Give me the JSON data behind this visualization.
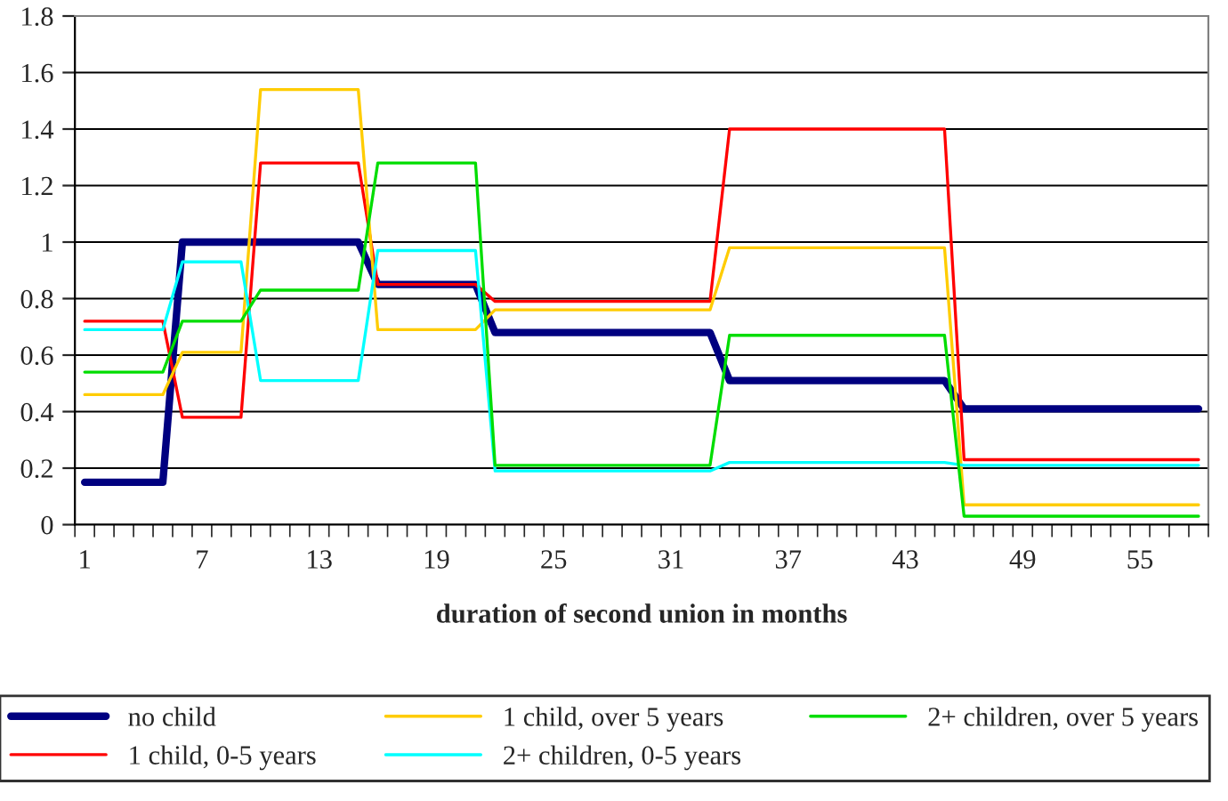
{
  "chart_data": {
    "type": "line",
    "xlabel": "duration of second union in months",
    "categories": [
      "1",
      null,
      null,
      null,
      null,
      null,
      "7",
      null,
      null,
      null,
      null,
      null,
      "13",
      null,
      null,
      null,
      null,
      null,
      "19",
      null,
      null,
      null,
      null,
      null,
      "25",
      null,
      null,
      null,
      null,
      null,
      "31",
      null,
      null,
      null,
      null,
      null,
      "37",
      null,
      null,
      null,
      null,
      null,
      "43",
      null,
      null,
      null,
      null,
      null,
      "49",
      null,
      null,
      null,
      null,
      null,
      "55",
      null,
      null,
      null
    ],
    "series": [
      {
        "name": "no child",
        "color": "#000080",
        "values": [
          0.15,
          0.15,
          0.15,
          0.15,
          0.15,
          1.0,
          1.0,
          1.0,
          1.0,
          1.0,
          1.0,
          1.0,
          1.0,
          1.0,
          1.0,
          0.85,
          0.85,
          0.85,
          0.85,
          0.85,
          0.85,
          0.68,
          0.68,
          0.68,
          0.68,
          0.68,
          0.68,
          0.68,
          0.68,
          0.68,
          0.68,
          0.68,
          0.68,
          0.51,
          0.51,
          0.51,
          0.51,
          0.51,
          0.51,
          0.51,
          0.51,
          0.51,
          0.51,
          0.51,
          0.51,
          0.41,
          0.41,
          0.41,
          0.41,
          0.41,
          0.41,
          0.41,
          0.41,
          0.41,
          0.41,
          0.41,
          0.41,
          0.41
        ]
      },
      {
        "name": "1 child, 0-5 years",
        "color": "#ff0000",
        "values": [
          0.72,
          0.72,
          0.72,
          0.72,
          0.72,
          0.38,
          0.38,
          0.38,
          0.38,
          1.28,
          1.28,
          1.28,
          1.28,
          1.28,
          1.28,
          0.85,
          0.85,
          0.85,
          0.85,
          0.85,
          0.85,
          0.79,
          0.79,
          0.79,
          0.79,
          0.79,
          0.79,
          0.79,
          0.79,
          0.79,
          0.79,
          0.79,
          0.79,
          1.4,
          1.4,
          1.4,
          1.4,
          1.4,
          1.4,
          1.4,
          1.4,
          1.4,
          1.4,
          1.4,
          1.4,
          0.23,
          0.23,
          0.23,
          0.23,
          0.23,
          0.23,
          0.23,
          0.23,
          0.23,
          0.23,
          0.23,
          0.23,
          0.23
        ]
      },
      {
        "name": "1 child, over 5 years",
        "color": "#ffcc00",
        "values": [
          0.46,
          0.46,
          0.46,
          0.46,
          0.46,
          0.61,
          0.61,
          0.61,
          0.61,
          1.54,
          1.54,
          1.54,
          1.54,
          1.54,
          1.54,
          0.69,
          0.69,
          0.69,
          0.69,
          0.69,
          0.69,
          0.76,
          0.76,
          0.76,
          0.76,
          0.76,
          0.76,
          0.76,
          0.76,
          0.76,
          0.76,
          0.76,
          0.76,
          0.98,
          0.98,
          0.98,
          0.98,
          0.98,
          0.98,
          0.98,
          0.98,
          0.98,
          0.98,
          0.98,
          0.98,
          0.07,
          0.07,
          0.07,
          0.07,
          0.07,
          0.07,
          0.07,
          0.07,
          0.07,
          0.07,
          0.07,
          0.07,
          0.07
        ]
      },
      {
        "name": "2+ children, 0-5 years",
        "color": "#00ffff",
        "values": [
          0.69,
          0.69,
          0.69,
          0.69,
          0.69,
          0.93,
          0.93,
          0.93,
          0.93,
          0.51,
          0.51,
          0.51,
          0.51,
          0.51,
          0.51,
          0.97,
          0.97,
          0.97,
          0.97,
          0.97,
          0.97,
          0.19,
          0.19,
          0.19,
          0.19,
          0.19,
          0.19,
          0.19,
          0.19,
          0.19,
          0.19,
          0.19,
          0.19,
          0.22,
          0.22,
          0.22,
          0.22,
          0.22,
          0.22,
          0.22,
          0.22,
          0.22,
          0.22,
          0.22,
          0.22,
          0.21,
          0.21,
          0.21,
          0.21,
          0.21,
          0.21,
          0.21,
          0.21,
          0.21,
          0.21,
          0.21,
          0.21,
          0.21
        ]
      },
      {
        "name": "2+ children, over 5 years",
        "color": "#00dd00",
        "values": [
          0.54,
          0.54,
          0.54,
          0.54,
          0.54,
          0.72,
          0.72,
          0.72,
          0.72,
          0.83,
          0.83,
          0.83,
          0.83,
          0.83,
          0.83,
          1.28,
          1.28,
          1.28,
          1.28,
          1.28,
          1.28,
          0.21,
          0.21,
          0.21,
          0.21,
          0.21,
          0.21,
          0.21,
          0.21,
          0.21,
          0.21,
          0.21,
          0.21,
          0.67,
          0.67,
          0.67,
          0.67,
          0.67,
          0.67,
          0.67,
          0.67,
          0.67,
          0.67,
          0.67,
          0.67,
          0.03,
          0.03,
          0.03,
          0.03,
          0.03,
          0.03,
          0.03,
          0.03,
          0.03,
          0.03,
          0.03,
          0.03,
          0.03
        ]
      }
    ],
    "ylim": [
      0,
      1.8
    ],
    "yticks": [
      0,
      0.2,
      0.4,
      0.6,
      0.8,
      1,
      1.2,
      1.4,
      1.6,
      1.8
    ],
    "grid": "y",
    "legend": "bottom",
    "marker": "none",
    "line_style": "solid"
  }
}
